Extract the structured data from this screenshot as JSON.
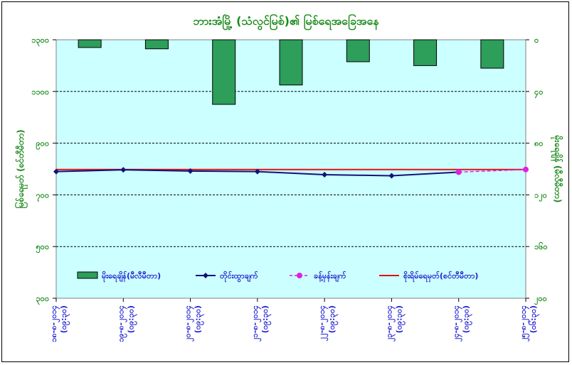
{
  "chart_data": {
    "type": "bar+line",
    "title": "ဘားအံမြို့ (သံလွင်မြစ်)၏ မြစ်ရေအခြေအနေ",
    "ylabel_left": "မြစ်ရေမှတ် (စင်တီမီတာ)",
    "ylabel_right": "မိုးရေချိန် (မီလီမီတာ)",
    "left_ticks": [
      "၁၃၀၀",
      "၁၁၀၀",
      "၉၀၀",
      "၇၀၀",
      "၅၀၀",
      "၃၀၀"
    ],
    "right_ticks": [
      "၀",
      "၄၀",
      "၈၀",
      "၁၂၀",
      "၁၆၀",
      "၂၀၀"
    ],
    "ylim_left": [
      300,
      1300
    ],
    "ylim_right": [
      0,
      200
    ],
    "categories": [
      [
        "၁၈-၈-၂၀၁၄",
        "(၀၉:၃၀)"
      ],
      [
        "၁၉-၈-၂၀၁၄",
        "(၀၉:၃၀)"
      ],
      [
        "၂၀-၈-၂၀၁၄",
        "(၀၉:၃၀)"
      ],
      [
        "၂၁-၈-၂၀၁၄",
        "(၀၉:၃၀)"
      ],
      [
        "၂၂-၈-၂၀၁၄",
        "(၀၉:၃၀)"
      ],
      [
        "၂၃-၈-၂၀၁၄",
        "(၀၉:၃၀)"
      ],
      [
        "၂၄-၈-၂၀၁၄",
        "(၀၉:၃၀)"
      ],
      [
        "၂၅-၈-၂၀၁၄",
        "(၀၆:၃၀)"
      ]
    ],
    "series": [
      {
        "name": "မိုးရေချိန်(မီလီမီတာ)",
        "kind": "bar",
        "axis": "right",
        "color": "#2e9e5b",
        "values": [
          6,
          7,
          50,
          35,
          17,
          20,
          22,
          null
        ]
      },
      {
        "name": "တိုင်းထွာချက်",
        "kind": "line",
        "axis": "left",
        "color": "#12127a",
        "values": [
          790,
          797,
          792,
          790,
          778,
          774,
          788,
          null
        ]
      },
      {
        "name": "ခန့်မှန်းချက်",
        "kind": "dashed-line",
        "axis": "left",
        "color": "#e020e0",
        "values": [
          null,
          null,
          null,
          null,
          null,
          null,
          788,
          798
        ]
      },
      {
        "name": "စိုးရိမ်ရေမှတ်(စင်တီမီတာ)",
        "kind": "hline",
        "axis": "left",
        "color": "#e01010",
        "value": 798
      }
    ],
    "grid": true,
    "legend": "bottom-inside"
  }
}
